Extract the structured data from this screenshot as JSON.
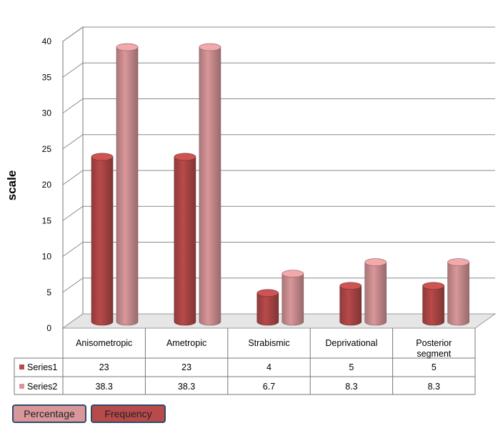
{
  "chart_data": {
    "type": "bar",
    "title": "",
    "xlabel": "",
    "ylabel": "scale",
    "ylim": [
      0,
      40
    ],
    "yticks": [
      0,
      5,
      10,
      15,
      20,
      25,
      30,
      35,
      40
    ],
    "grid": true,
    "categories": [
      "Anisometropic",
      "Ametropic",
      "Strabismic",
      "Deprivational",
      "Posterior segment"
    ],
    "series": [
      {
        "name": "Series1",
        "values": [
          23,
          23,
          4,
          5,
          5
        ],
        "color": "#b84a4a"
      },
      {
        "name": "Series2",
        "values": [
          38.3,
          38.3,
          6.7,
          8.3,
          8.3
        ],
        "color": "#d9979a"
      }
    ],
    "data_table": {
      "rows": [
        {
          "label": "Series1",
          "cells": [
            "23",
            "23",
            "4",
            "5",
            "5"
          ]
        },
        {
          "label": "Series2",
          "cells": [
            "38.3",
            "38.3",
            "6.7",
            "8.3",
            "8.3"
          ]
        }
      ]
    }
  },
  "legend": {
    "percentage_label": "Percentage",
    "frequency_label": "Frequency",
    "percentage_color": "#d9979a",
    "frequency_color": "#b84a4a"
  }
}
